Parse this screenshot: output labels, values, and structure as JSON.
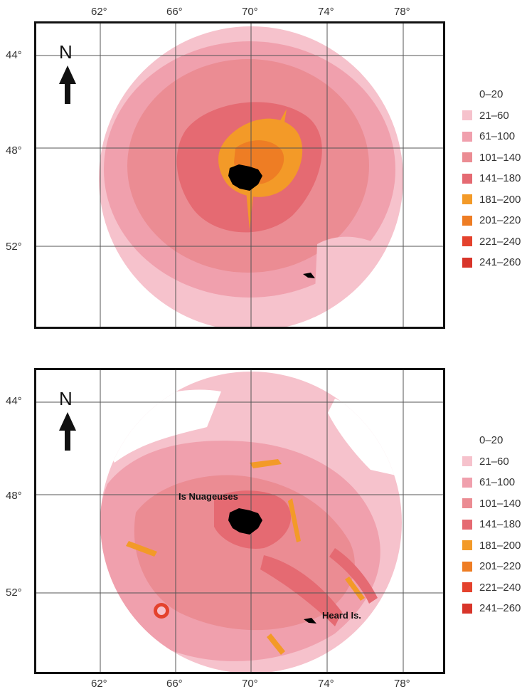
{
  "top_axis_lon_labels": [
    "62°",
    "66°",
    "70°",
    "74°",
    "78°"
  ],
  "bottom_axis_lon_labels": [
    "62°",
    "66°",
    "70°",
    "74°",
    "78°"
  ],
  "lat_labels": [
    "44°",
    "48°",
    "52°"
  ],
  "north_label": "N",
  "legend": {
    "items": [
      {
        "label": "0–20",
        "color": "#ffffff"
      },
      {
        "label": "21–60",
        "color": "#f6c2cc"
      },
      {
        "label": "61–100",
        "color": "#f0a0ad"
      },
      {
        "label": "101–140",
        "color": "#eb8c93"
      },
      {
        "label": "141–180",
        "color": "#e56a72"
      },
      {
        "label": "181–200",
        "color": "#f39a28"
      },
      {
        "label": "201–220",
        "color": "#ee7d24"
      },
      {
        "label": "221–240",
        "color": "#e4422d"
      },
      {
        "label": "241–260",
        "color": "#d8352a"
      }
    ]
  },
  "map_bottom": {
    "place_labels": [
      "Is Nuageuses",
      "Heard Is."
    ]
  }
}
